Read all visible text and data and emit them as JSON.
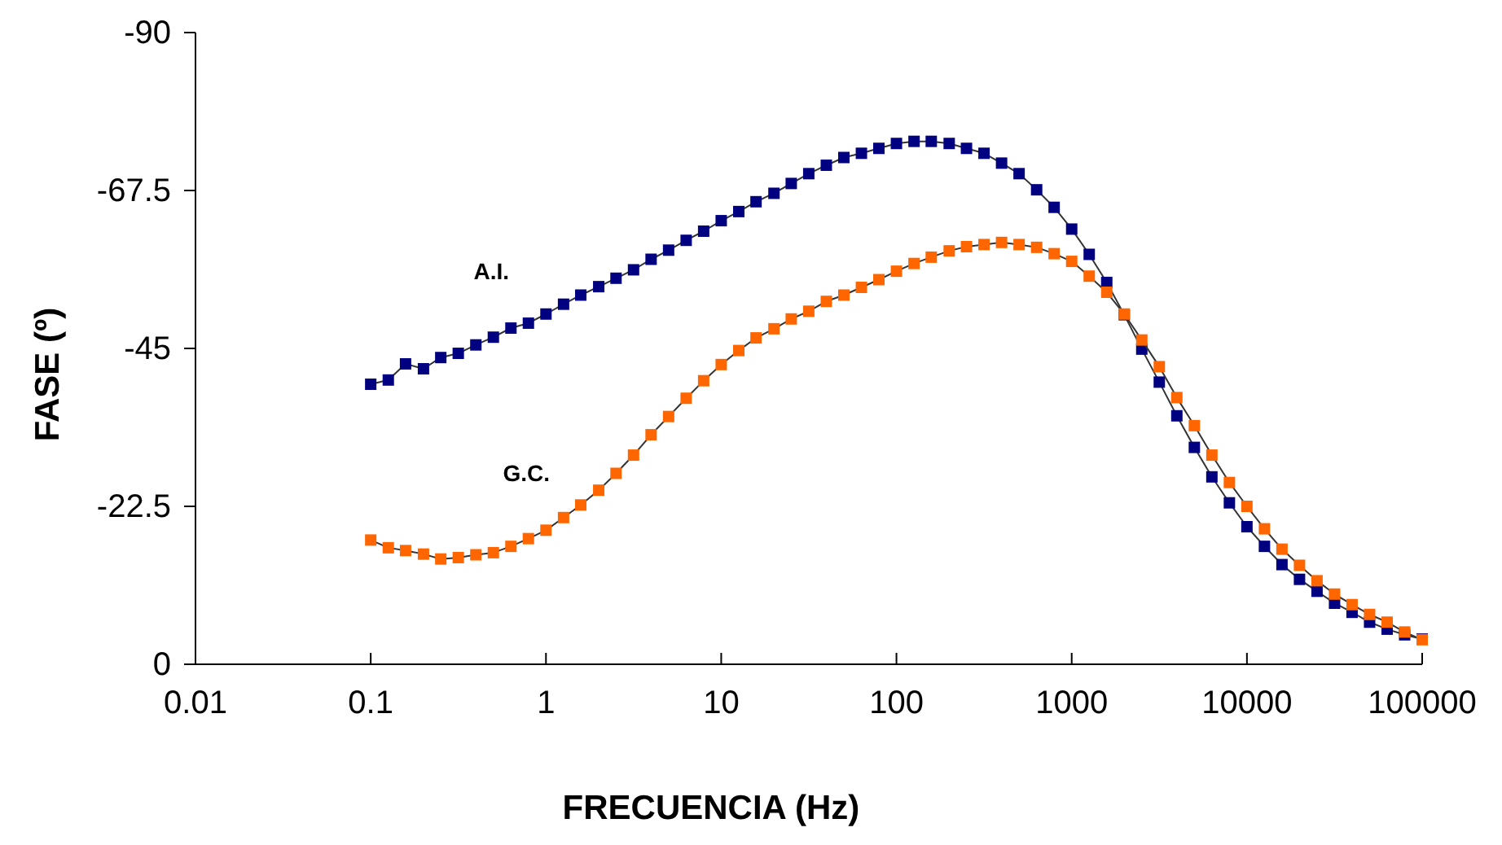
{
  "chart_data": {
    "type": "line",
    "xlabel": "FRECUENCIA (Hz)",
    "ylabel": "FASE (º)",
    "log": "x",
    "xlim": [
      0.01,
      100000
    ],
    "xticks": [
      0.01,
      0.1,
      1,
      10,
      100,
      1000,
      10000,
      100000
    ],
    "ylim": [
      0,
      -90
    ],
    "yticks": [
      0,
      -22.5,
      -45,
      -67.5,
      -90
    ],
    "grid": false,
    "legend": false,
    "marker": "square",
    "line_style": "solid",
    "x": [
      0.1,
      0.126,
      0.158,
      0.2,
      0.251,
      0.316,
      0.398,
      0.501,
      0.631,
      0.794,
      1,
      1.26,
      1.58,
      2,
      2.51,
      3.16,
      3.98,
      5.01,
      6.31,
      7.94,
      10,
      12.6,
      15.8,
      20,
      25.1,
      31.6,
      39.8,
      50.1,
      63.1,
      79.4,
      100,
      126,
      158,
      200,
      251,
      316,
      398,
      501,
      631,
      794,
      1000,
      1259,
      1585,
      1995,
      2512,
      3162,
      3981,
      5012,
      6310,
      7943,
      10000,
      12589,
      15849,
      19953,
      25119,
      31623,
      39811,
      50119,
      63096,
      79433,
      100000
    ],
    "series": [
      {
        "name": "A.I.",
        "color": "#000080",
        "values": [
          -39.9,
          -40.5,
          -42.8,
          -42.1,
          -43.7,
          -44.3,
          -45.5,
          -46.6,
          -47.9,
          -48.6,
          -49.9,
          -51.3,
          -52.6,
          -53.8,
          -55.0,
          -56.2,
          -57.7,
          -59.0,
          -60.4,
          -61.7,
          -63.2,
          -64.5,
          -65.9,
          -67.1,
          -68.5,
          -69.9,
          -71.1,
          -72.2,
          -72.8,
          -73.5,
          -74.2,
          -74.5,
          -74.5,
          -74.2,
          -73.5,
          -72.8,
          -71.4,
          -69.9,
          -67.6,
          -65.1,
          -62.0,
          -58.4,
          -54.4,
          -49.8,
          -44.9,
          -40.2,
          -35.4,
          -30.9,
          -26.7,
          -23.0,
          -19.6,
          -16.8,
          -14.2,
          -12.1,
          -10.4,
          -8.7,
          -7.4,
          -6.0,
          -5.0,
          -4.2,
          -3.6
        ]
      },
      {
        "name": "G.C.",
        "color": "#ff6600",
        "values": [
          -17.7,
          -16.6,
          -16.2,
          -15.7,
          -15.0,
          -15.2,
          -15.6,
          -15.9,
          -16.8,
          -17.9,
          -19.1,
          -20.9,
          -22.7,
          -24.8,
          -27.2,
          -29.8,
          -32.7,
          -35.3,
          -37.9,
          -40.4,
          -42.7,
          -44.7,
          -46.5,
          -47.8,
          -49.2,
          -50.3,
          -51.7,
          -52.6,
          -53.7,
          -54.8,
          -56.0,
          -57.1,
          -58.0,
          -58.9,
          -59.5,
          -59.8,
          -60.1,
          -59.8,
          -59.4,
          -58.5,
          -57.4,
          -55.3,
          -53.0,
          -49.9,
          -46.2,
          -42.4,
          -38.0,
          -34.0,
          -29.8,
          -25.9,
          -22.5,
          -19.3,
          -16.4,
          -14.1,
          -11.9,
          -10.0,
          -8.5,
          -7.1,
          -6.0,
          -4.6,
          -3.5
        ]
      }
    ]
  }
}
